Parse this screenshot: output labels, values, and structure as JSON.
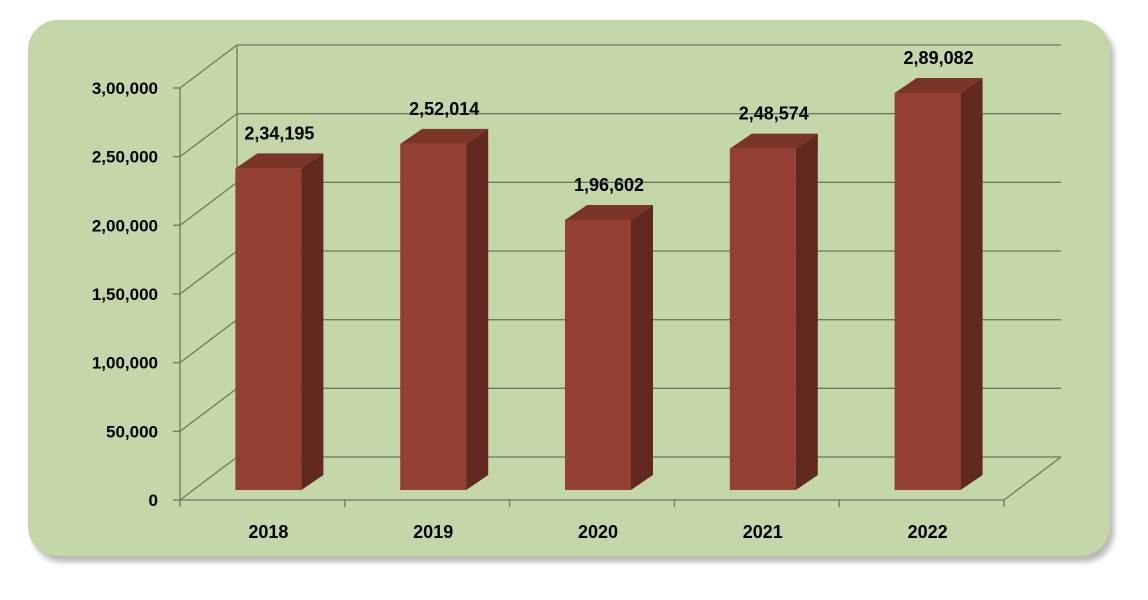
{
  "chart_data": {
    "type": "bar",
    "title": "",
    "xlabel": "",
    "ylabel": "",
    "categories": [
      "2018",
      "2019",
      "2020",
      "2021",
      "2022"
    ],
    "values": [
      234195,
      252014,
      196602,
      248574,
      289082
    ],
    "value_labels": [
      "2,34,195",
      "2,52,014",
      "1,96,602",
      "2,48,574",
      "2,89,082"
    ],
    "y_ticks": [
      0,
      50000,
      100000,
      150000,
      200000,
      250000,
      300000
    ],
    "y_tick_labels": [
      "0",
      "50,000",
      "1,00,000",
      "1,50,000",
      "2,00,000",
      "2,50,000",
      "3,00,000"
    ],
    "ylim": [
      0,
      300000
    ],
    "grid": true,
    "legend": "none",
    "three_d": true,
    "colors": {
      "background": "#c4d7a8",
      "bar_front": "#934032",
      "bar_side": "#612820",
      "bar_top": "#7a3428",
      "grid": "#6b7a5e"
    }
  }
}
